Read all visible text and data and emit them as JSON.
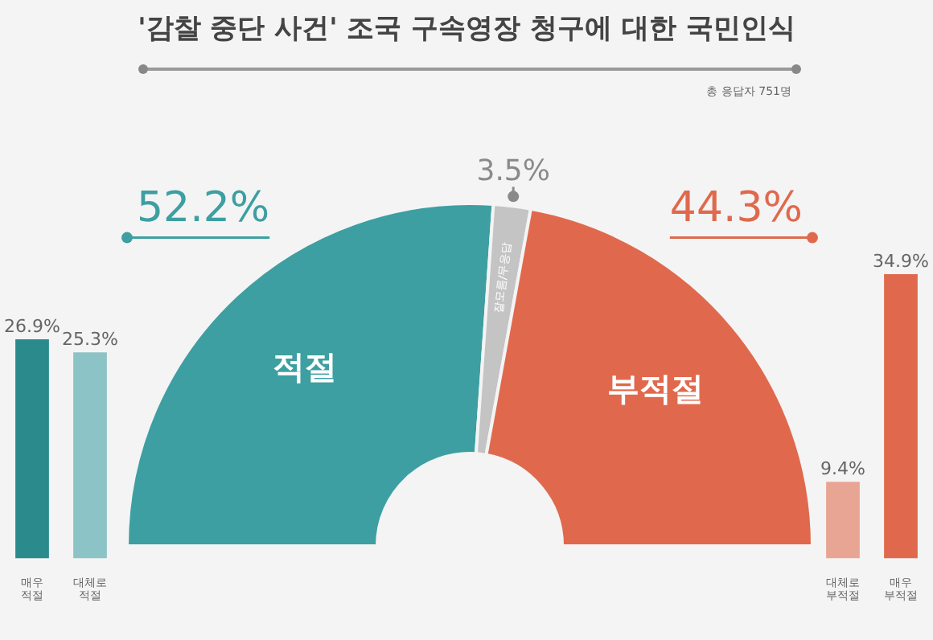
{
  "chart_data": [
    {
      "type": "donut",
      "title": "'감찰 중단 사건' 조국 구속영장 청구에 대한 국민인식",
      "annotations": [
        "총 응답자 751명"
      ],
      "categories": [
        "적절",
        "잘모름/무응답",
        "부적절"
      ],
      "values": [
        52.2,
        3.5,
        44.3
      ],
      "value_labels": [
        "52.2%",
        "3.5%",
        "44.3%"
      ],
      "colors": [
        "#3d9fa1",
        "#c4c4c4",
        "#e0694d"
      ],
      "legend": false
    },
    {
      "type": "bar",
      "categories": [
        "매우 적절",
        "대체로 적절",
        null,
        null,
        null,
        null,
        null,
        null,
        null,
        null,
        null,
        null,
        null,
        null,
        "대체로 부적절",
        "매우 부적절"
      ],
      "values": [
        26.9,
        25.3,
        null,
        null,
        null,
        null,
        null,
        null,
        null,
        null,
        null,
        null,
        null,
        null,
        9.4,
        34.9
      ],
      "value_labels": [
        "26.9%",
        "25.3%",
        null,
        null,
        null,
        null,
        null,
        null,
        null,
        null,
        null,
        null,
        null,
        null,
        "9.4%",
        "34.9%"
      ],
      "colors": [
        "#2a8a8c",
        "#8cc3c6",
        null,
        null,
        null,
        null,
        null,
        null,
        null,
        null,
        null,
        null,
        null,
        null,
        "#e8a593",
        "#e0694d"
      ],
      "legend": false,
      "grid": false
    }
  ]
}
